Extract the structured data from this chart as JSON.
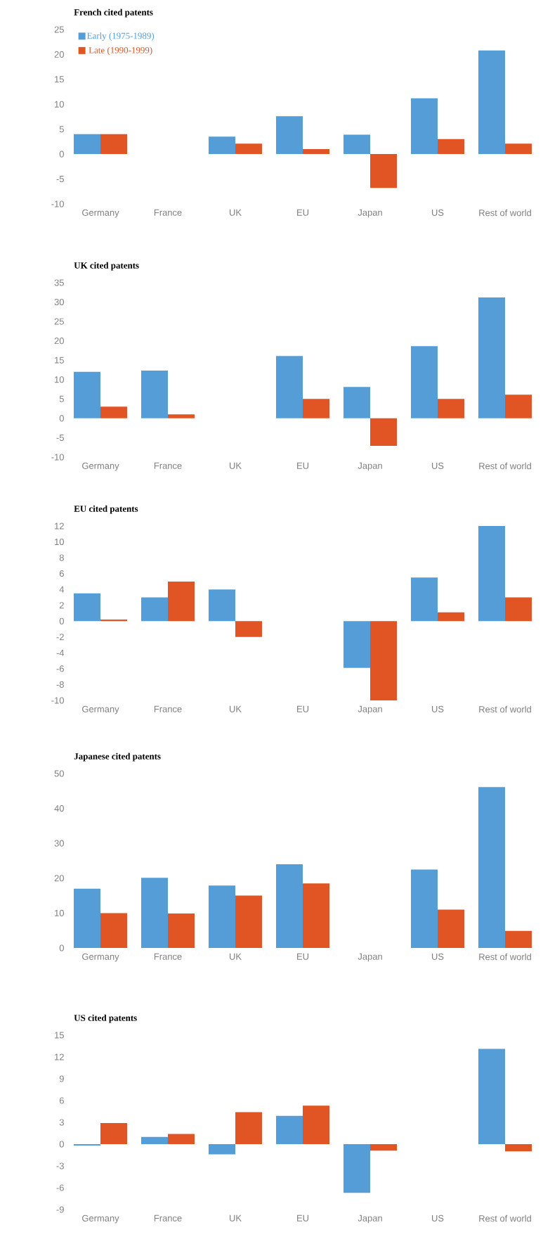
{
  "chart_data": [
    {
      "type": "bar",
      "title": "French cited patents",
      "categories": [
        "Germany",
        "France",
        "UK",
        "EU",
        "Japan",
        "US",
        "Rest of world"
      ],
      "ylim": [
        -10,
        25
      ],
      "yticks": [
        -10,
        -5,
        0,
        5,
        10,
        15,
        20,
        25
      ],
      "legend": "top left",
      "series": [
        {
          "name": "Early (1975-1989)",
          "color": "#559dd6",
          "values": [
            4.0,
            0,
            3.5,
            7.6,
            3.9,
            11.2,
            20.8
          ]
        },
        {
          "name": "Late (1990-1999)",
          "color": "#e15525",
          "values": [
            4.0,
            0,
            2.1,
            1.0,
            -6.8,
            3.0,
            2.1
          ]
        }
      ]
    },
    {
      "type": "bar",
      "title": "UK cited patents",
      "categories": [
        "Germany",
        "France",
        "UK",
        "EU",
        "Japan",
        "US",
        "Rest of world"
      ],
      "ylim": [
        -10,
        35
      ],
      "yticks": [
        -10,
        -5,
        0,
        5,
        10,
        15,
        20,
        25,
        30,
        35
      ],
      "series": [
        {
          "color": "#559dd6",
          "values": [
            12.0,
            12.3,
            0,
            16.1,
            8.1,
            18.6,
            31.2
          ]
        },
        {
          "color": "#e15525",
          "values": [
            3.0,
            1.0,
            0,
            5.0,
            -7.1,
            5.0,
            6.1
          ]
        }
      ]
    },
    {
      "type": "bar",
      "title": "EU cited patents",
      "categories": [
        "Germany",
        "France",
        "UK",
        "EU",
        "Japan",
        "US",
        "Rest of world"
      ],
      "ylim": [
        -10,
        12
      ],
      "yticks": [
        -10,
        -8,
        -6,
        -4,
        -2,
        0,
        2,
        4,
        6,
        8,
        10,
        12
      ],
      "series": [
        {
          "color": "#559dd6",
          "values": [
            3.5,
            3.0,
            4.0,
            0,
            -5.9,
            5.5,
            12.0
          ]
        },
        {
          "color": "#e15525",
          "values": [
            0.2,
            5.0,
            -2.0,
            0,
            -10.0,
            1.1,
            3.0
          ]
        }
      ]
    },
    {
      "type": "bar",
      "title": "Japanese cited patents",
      "categories": [
        "Germany",
        "France",
        "UK",
        "EU",
        "Japan",
        "US",
        "Rest of world"
      ],
      "ylim": [
        0,
        50
      ],
      "yticks": [
        0,
        10,
        20,
        30,
        40,
        50
      ],
      "series": [
        {
          "color": "#559dd6",
          "values": [
            17.0,
            20.1,
            17.9,
            24.0,
            0,
            22.5,
            46.1
          ]
        },
        {
          "color": "#e15525",
          "values": [
            10.0,
            9.9,
            15.0,
            18.5,
            0,
            11.0,
            4.9
          ]
        }
      ]
    },
    {
      "type": "bar",
      "title": "US cited patents",
      "categories": [
        "Germany",
        "France",
        "UK",
        "EU",
        "Japan",
        "US",
        "Rest of world"
      ],
      "ylim": [
        -9,
        15
      ],
      "yticks": [
        -9,
        -6,
        -3,
        0,
        3,
        6,
        9,
        12,
        15
      ],
      "series": [
        {
          "color": "#559dd6",
          "values": [
            -0.2,
            1.0,
            -1.4,
            3.9,
            -6.7,
            0,
            13.1
          ]
        },
        {
          "color": "#e15525",
          "values": [
            2.9,
            1.4,
            4.4,
            5.3,
            -0.9,
            0,
            -1.0
          ]
        }
      ]
    }
  ]
}
